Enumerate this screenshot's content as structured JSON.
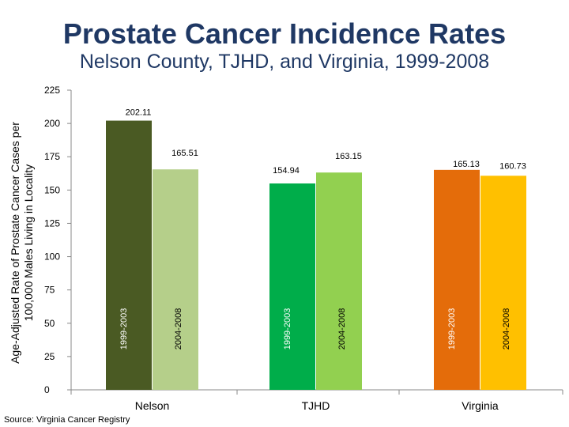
{
  "chart_data": {
    "type": "bar",
    "title": "Prostate Cancer Incidence Rates",
    "subtitle": "Nelson County, TJHD, and Virginia, 1999-2008",
    "ylabel": "Age-Adjusted Rate of Prostate Cancer Cases per 100,000 Males Living in Locality",
    "xlabel": "",
    "ylim": [
      0,
      225
    ],
    "yticks": [
      0,
      25,
      50,
      75,
      100,
      125,
      150,
      175,
      200,
      225
    ],
    "grid": false,
    "categories": [
      "Nelson",
      "TJHD",
      "Virginia"
    ],
    "groups": [
      {
        "name": "Nelson",
        "bars": [
          {
            "period": "1999-2003",
            "value": 202.11,
            "label": "202.11",
            "color": "#4a5a23"
          },
          {
            "period": "2004-2008",
            "value": 165.51,
            "label": "165.51",
            "color": "#b5cf8a"
          }
        ]
      },
      {
        "name": "TJHD",
        "bars": [
          {
            "period": "1999-2003",
            "value": 154.94,
            "label": "154.94",
            "color": "#00ad4a"
          },
          {
            "period": "2004-2008",
            "value": 163.15,
            "label": "163.15",
            "color": "#92d050"
          }
        ]
      },
      {
        "name": "Virginia",
        "bars": [
          {
            "period": "1999-2003",
            "value": 165.13,
            "label": "165.13",
            "color": "#e46c0a"
          },
          {
            "period": "2004-2008",
            "value": 160.73,
            "label": "160.73",
            "color": "#ffc000"
          }
        ]
      }
    ]
  },
  "footer": {
    "source": "Source: Virginia Cancer Registry"
  }
}
